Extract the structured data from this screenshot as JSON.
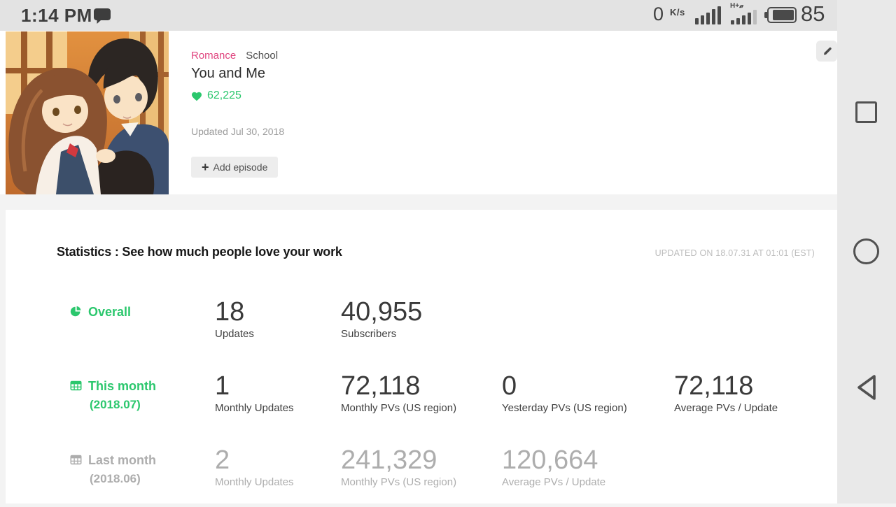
{
  "colors": {
    "accent_green": "#2bc76d",
    "genre_pink": "#e0457f",
    "inactive_gray": "#adadad"
  },
  "status_bar": {
    "time": "1:14 PM",
    "network_speed": "0",
    "network_speed_unit": "K/s",
    "network_type": "H+",
    "battery_percent": "85"
  },
  "header": {
    "genres": [
      {
        "label": "Romance",
        "highlight": true
      },
      {
        "label": "School",
        "highlight": false
      }
    ],
    "title": "You and Me",
    "likes_count": "62,225",
    "updated_text": "Updated Jul 30, 2018",
    "add_episode_plus": "+",
    "add_episode_label": "Add episode"
  },
  "statistics": {
    "title": "Statistics : See how much people love your work",
    "updated_on": "UPDATED ON 18.07.31 AT 01:01 (EST)",
    "rows": [
      {
        "label": "Overall",
        "sublabel": "",
        "icon": "pie-chart",
        "state": "active",
        "metrics": [
          {
            "value": "18",
            "label": "Updates"
          },
          {
            "value": "40,955",
            "label": "Subscribers"
          }
        ]
      },
      {
        "label": "This month",
        "sublabel": "(2018.07)",
        "icon": "calendar-table",
        "state": "active",
        "metrics": [
          {
            "value": "1",
            "label": "Monthly Updates"
          },
          {
            "value": "72,118",
            "label": "Monthly PVs (US region)"
          },
          {
            "value": "0",
            "label": "Yesterday PVs (US region)"
          },
          {
            "value": "72,118",
            "label": "Average PVs / Update"
          }
        ]
      },
      {
        "label": "Last month",
        "sublabel": "(2018.06)",
        "icon": "calendar-table",
        "state": "inactive",
        "metrics": [
          {
            "value": "2",
            "label": "Monthly Updates"
          },
          {
            "value": "241,329",
            "label": "Monthly PVs (US region)"
          },
          {
            "value": "120,664",
            "label": "Average PVs / Update"
          }
        ]
      }
    ]
  },
  "icons": {
    "message": "chat-bubble-icon",
    "signal": "cellular-signal-icon",
    "data": "hplus-signal-icon",
    "battery": "battery-icon",
    "edit": "pencil-icon",
    "likes": "heart-icon",
    "overall": "pie-chart-icon",
    "month": "calendar-table-icon",
    "nav_recents": "recents-square-icon",
    "nav_home": "home-circle-icon",
    "nav_back": "back-triangle-icon"
  }
}
